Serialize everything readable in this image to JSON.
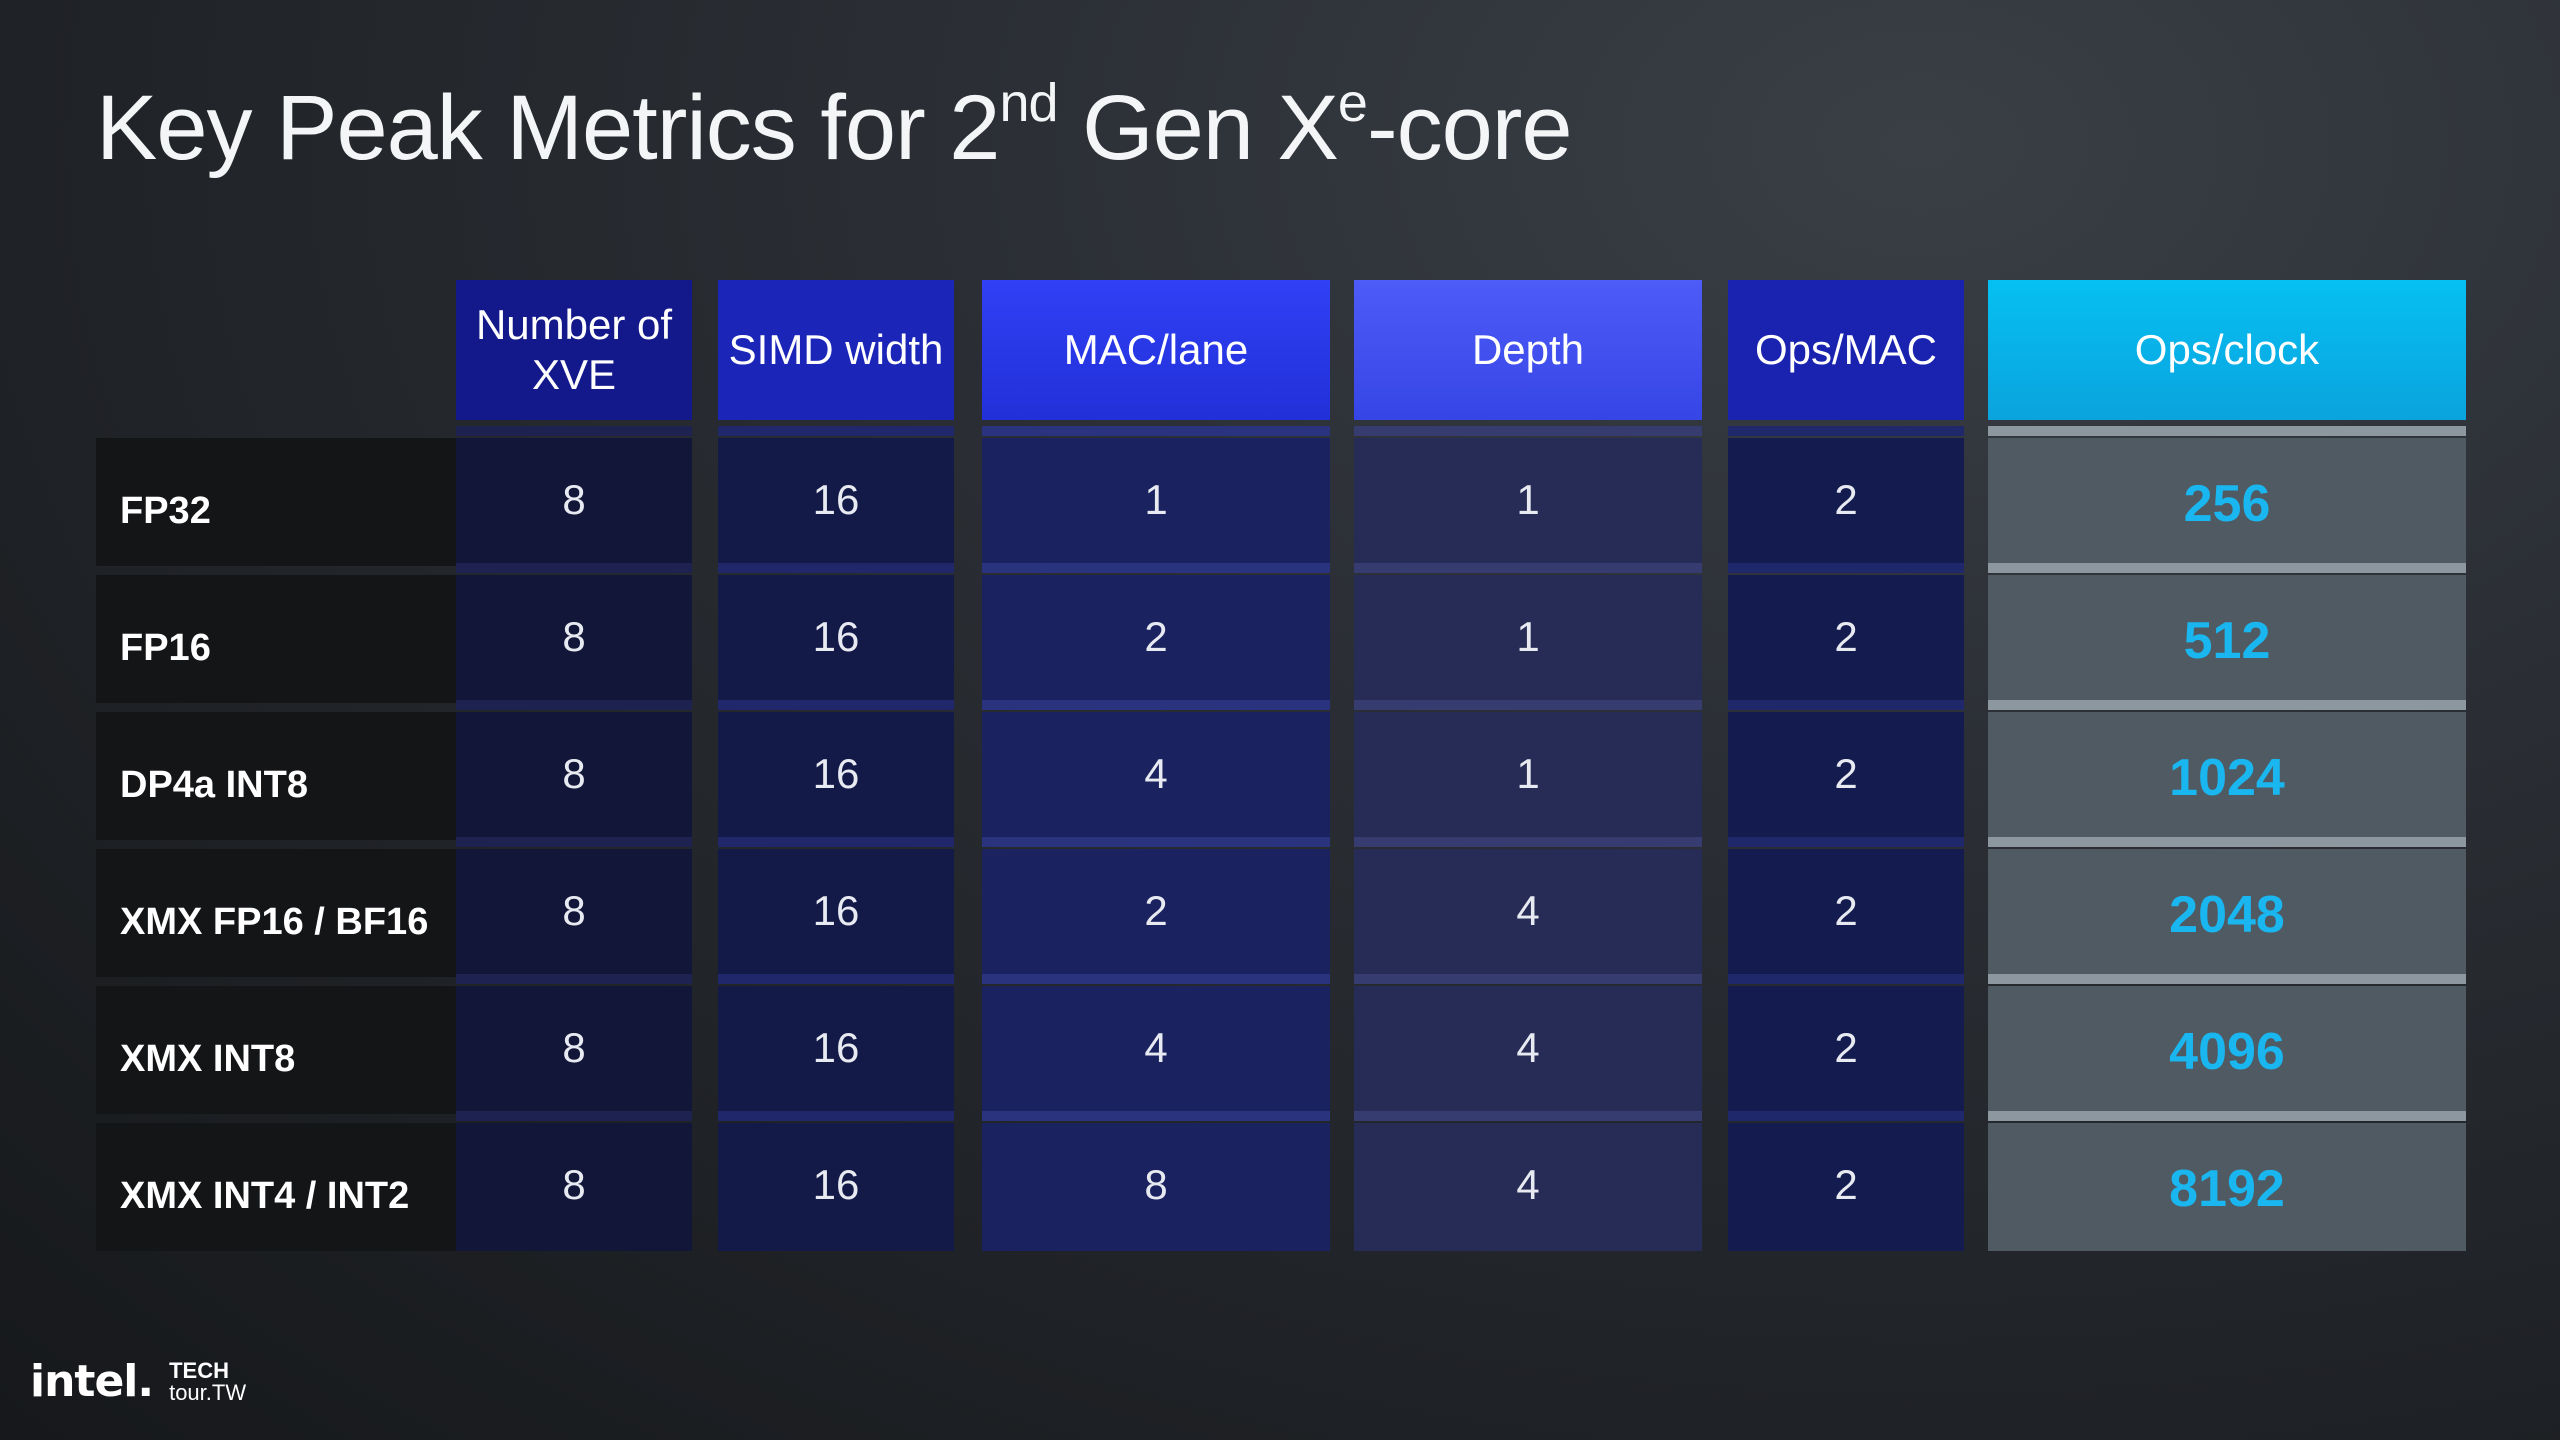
{
  "title": {
    "part1": "Key Peak Metrics for 2",
    "sup1": "nd",
    "part2": " Gen X",
    "sup2": "e",
    "part3": "-core"
  },
  "table": {
    "headers": {
      "xve": "Number of XVE",
      "simd": "SIMD width",
      "mac": "MAC/lane",
      "depth": "Depth",
      "ops": "Ops/MAC",
      "clock": "Ops/clock"
    },
    "rows": [
      {
        "label": "FP32",
        "xve": "8",
        "simd": "16",
        "mac": "1",
        "depth": "1",
        "ops": "2",
        "clock": "256"
      },
      {
        "label": "FP16",
        "xve": "8",
        "simd": "16",
        "mac": "2",
        "depth": "1",
        "ops": "2",
        "clock": "512"
      },
      {
        "label": "DP4a INT8",
        "xve": "8",
        "simd": "16",
        "mac": "4",
        "depth": "1",
        "ops": "2",
        "clock": "1024"
      },
      {
        "label": "XMX FP16 / BF16",
        "xve": "8",
        "simd": "16",
        "mac": "2",
        "depth": "4",
        "ops": "2",
        "clock": "2048"
      },
      {
        "label": "XMX INT8",
        "xve": "8",
        "simd": "16",
        "mac": "4",
        "depth": "4",
        "ops": "2",
        "clock": "4096"
      },
      {
        "label": "XMX INT4 / INT2",
        "xve": "8",
        "simd": "16",
        "mac": "8",
        "depth": "4",
        "ops": "2",
        "clock": "8192"
      }
    ]
  },
  "footer": {
    "brand": "intel.",
    "event_line1": "TECH",
    "event_line2": "tour.TW"
  },
  "colors": {
    "accent": "#1ab6f0",
    "background": "#2b2f35"
  }
}
